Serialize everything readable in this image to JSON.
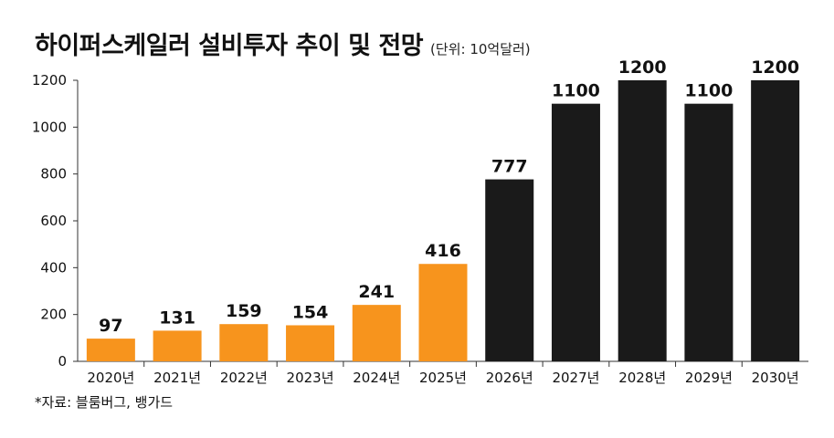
{
  "title": "하이퍼스케일러 설비투자 추이 및 전망",
  "unit_note": "(단위: 10억달러)",
  "source": "*자료: 블룸버그, 뱅가드",
  "colors": {
    "actual": "#F7941D",
    "forecast": "#1A1A1A"
  },
  "chart_data": {
    "type": "bar",
    "categories": [
      "2020년",
      "2021년",
      "2022년",
      "2023년",
      "2024년",
      "2025년",
      "2026년",
      "2027년",
      "2028년",
      "2029년",
      "2030년"
    ],
    "values": [
      97,
      131,
      159,
      154,
      241,
      416,
      777,
      1100,
      1200,
      1100,
      1200
    ],
    "value_labels": [
      "97",
      "131",
      "159",
      "154",
      "241",
      "416",
      "777",
      "1100",
      "1200",
      "1100",
      "1200"
    ],
    "bar_color_keys": [
      "actual",
      "actual",
      "actual",
      "actual",
      "actual",
      "actual",
      "forecast",
      "forecast",
      "forecast",
      "forecast",
      "forecast"
    ],
    "title": "하이퍼스케일러 설비투자 추이 및 전망",
    "xlabel": "",
    "ylabel": "",
    "ylim": [
      0,
      1200
    ],
    "yticks": [
      0,
      200,
      400,
      600,
      800,
      1000,
      1200
    ],
    "grid": false,
    "legend": "none"
  }
}
